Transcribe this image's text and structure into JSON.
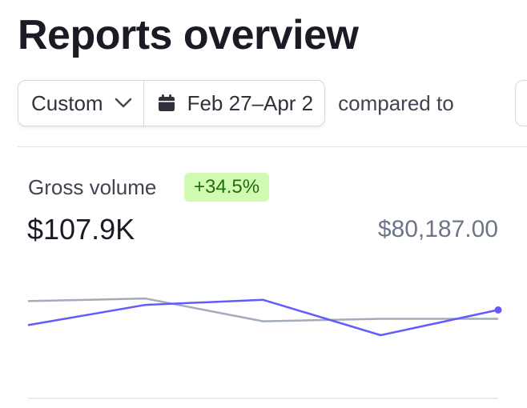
{
  "header": {
    "title": "Reports overview"
  },
  "filters": {
    "range_label": "Custom",
    "date_range": "Feb 27–Apr 2",
    "compared_label": "compared to"
  },
  "metric": {
    "label": "Gross volume",
    "delta": "+34.5%",
    "value": "$107.9K",
    "comparison_value": "$80,187.00"
  },
  "colors": {
    "current_series": "#635bff",
    "previous_series": "#a3acb9",
    "badge_bg": "#d1fab3",
    "badge_text": "#217005"
  },
  "chart_data": {
    "type": "line",
    "series": [
      {
        "values": [
          0.42,
          0.26,
          0.22,
          0.5,
          0.3
        ]
      },
      {
        "values": [
          0.23,
          0.21,
          0.39,
          0.37,
          0.37
        ]
      }
    ]
  }
}
